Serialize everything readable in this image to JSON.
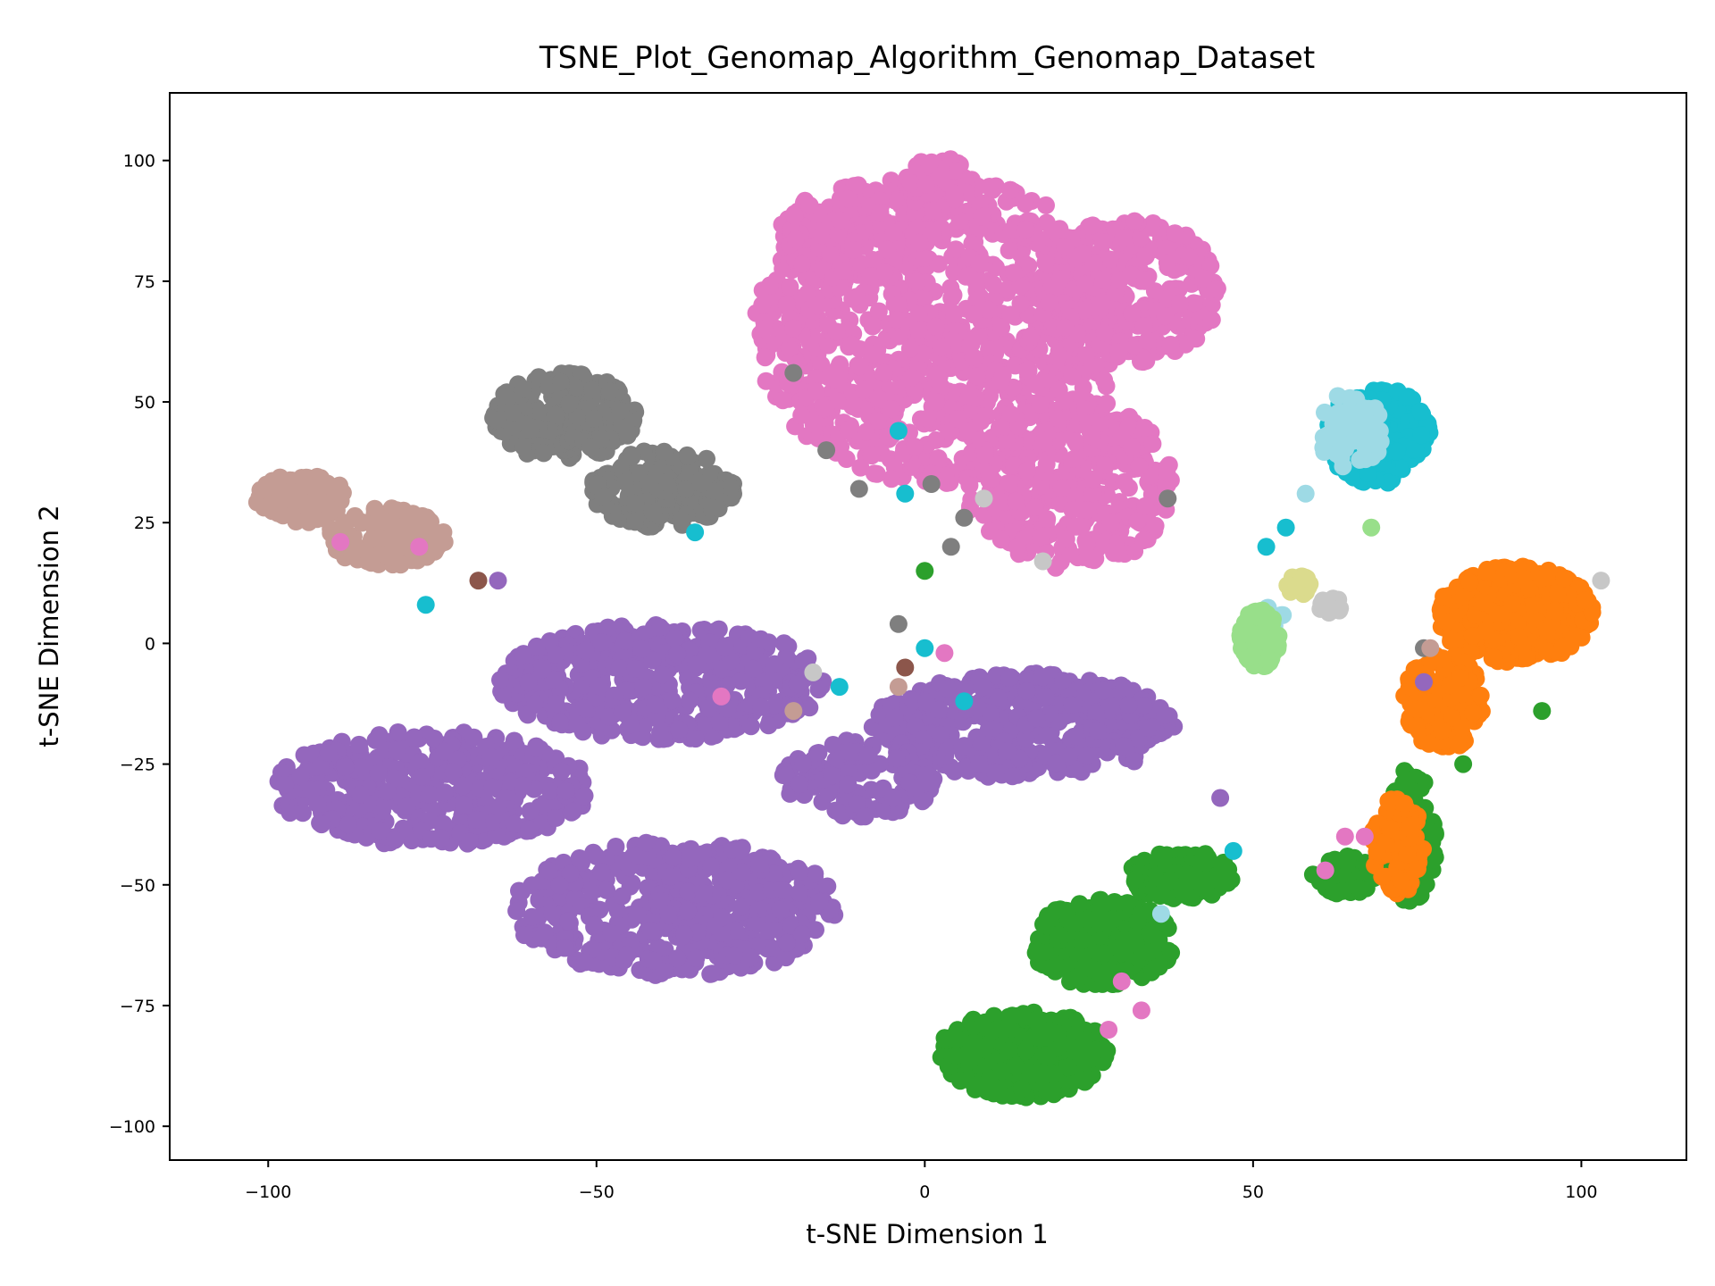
{
  "chart_data": {
    "type": "scatter",
    "title": "TSNE_Plot_Genomap_Algorithm_Genomap_Dataset",
    "xlabel": "t-SNE Dimension 1",
    "ylabel": "t-SNE Dimension 2",
    "xlim": [
      -115,
      116
    ],
    "ylim": [
      -107,
      114
    ],
    "xticks": [
      -100,
      -50,
      0,
      50,
      100
    ],
    "yticks": [
      -100,
      -75,
      -50,
      -25,
      0,
      25,
      50,
      75,
      100
    ],
    "xtick_labels": [
      "−100",
      "−50",
      "0",
      "50",
      "100"
    ],
    "ytick_labels": [
      "−100",
      "−75",
      "−50",
      "−25",
      "0",
      "25",
      "50",
      "75",
      "100"
    ],
    "grid": false,
    "legend": "none",
    "series": [
      {
        "color": "#e377c2",
        "clusters": [
          {
            "cx": 2,
            "cy": 65,
            "rx": 28,
            "ry": 32,
            "n": 900
          },
          {
            "cx": 31,
            "cy": 73,
            "rx": 14,
            "ry": 15,
            "n": 300
          },
          {
            "cx": 22,
            "cy": 33,
            "rx": 16,
            "ry": 18,
            "n": 350
          },
          {
            "cx": -10,
            "cy": 85,
            "rx": 12,
            "ry": 10,
            "n": 150
          },
          {
            "cx": 2,
            "cy": 95,
            "rx": 5,
            "ry": 6,
            "n": 60
          }
        ]
      },
      {
        "color": "#9467bd",
        "clusters": [
          {
            "cx": -40,
            "cy": -8,
            "rx": 25,
            "ry": 12,
            "n": 500
          },
          {
            "cx": 15,
            "cy": -17,
            "rx": 23,
            "ry": 11,
            "n": 450
          },
          {
            "cx": -75,
            "cy": -30,
            "rx": 24,
            "ry": 12,
            "n": 450
          },
          {
            "cx": -38,
            "cy": -55,
            "rx": 25,
            "ry": 14,
            "n": 500
          },
          {
            "cx": -10,
            "cy": -28,
            "rx": 12,
            "ry": 8,
            "n": 120
          }
        ]
      },
      {
        "color": "#7f7f7f",
        "clusters": [
          {
            "cx": -55,
            "cy": 47,
            "rx": 11,
            "ry": 9,
            "n": 260
          },
          {
            "cx": -40,
            "cy": 32,
            "rx": 11,
            "ry": 8,
            "n": 220
          }
        ]
      },
      {
        "color": "#c49c94",
        "clusters": [
          {
            "cx": -95,
            "cy": 30,
            "rx": 7,
            "ry": 5,
            "n": 120
          },
          {
            "cx": -82,
            "cy": 22,
            "rx": 9,
            "ry": 6,
            "n": 140
          }
        ]
      },
      {
        "color": "#2ca02c",
        "clusters": [
          {
            "cx": 15,
            "cy": -85,
            "rx": 13,
            "ry": 9,
            "n": 380
          },
          {
            "cx": 27,
            "cy": -62,
            "rx": 11,
            "ry": 9,
            "n": 300
          },
          {
            "cx": 39,
            "cy": -48,
            "rx": 8,
            "ry": 5,
            "n": 200
          },
          {
            "cx": 74,
            "cy": -40,
            "rx": 4,
            "ry": 14,
            "n": 120
          },
          {
            "cx": 64,
            "cy": -48,
            "rx": 5,
            "ry": 4,
            "n": 60
          }
        ]
      },
      {
        "color": "#ff7f0e",
        "clusters": [
          {
            "cx": 90,
            "cy": 6,
            "rx": 12,
            "ry": 10,
            "n": 420
          },
          {
            "cx": 79,
            "cy": -12,
            "rx": 6,
            "ry": 10,
            "n": 200
          },
          {
            "cx": 72,
            "cy": -42,
            "rx": 4,
            "ry": 10,
            "n": 100
          }
        ]
      },
      {
        "color": "#17becf",
        "clusters": [
          {
            "cx": 69,
            "cy": 43,
            "rx": 8,
            "ry": 10,
            "n": 260
          }
        ]
      },
      {
        "color": "#9edae5",
        "clusters": [
          {
            "cx": 65,
            "cy": 44,
            "rx": 5,
            "ry": 8,
            "n": 80
          },
          {
            "cx": 53,
            "cy": 5,
            "rx": 2,
            "ry": 3,
            "n": 12
          }
        ]
      },
      {
        "color": "#98df8a",
        "clusters": [
          {
            "cx": 51,
            "cy": 1,
            "rx": 3,
            "ry": 6,
            "n": 130
          }
        ]
      },
      {
        "color": "#dbdb8d",
        "clusters": [
          {
            "cx": 57,
            "cy": 12,
            "rx": 2,
            "ry": 2,
            "n": 25
          }
        ]
      },
      {
        "color": "#c7c7c7",
        "clusters": [
          {
            "cx": 62,
            "cy": 8,
            "rx": 2,
            "ry": 2,
            "n": 15
          }
        ]
      }
    ],
    "scattered_points": [
      {
        "color": "#7f7f7f",
        "x": -20,
        "y": 56
      },
      {
        "color": "#7f7f7f",
        "x": -15,
        "y": 40
      },
      {
        "color": "#7f7f7f",
        "x": -10,
        "y": 32
      },
      {
        "color": "#7f7f7f",
        "x": 1,
        "y": 33
      },
      {
        "color": "#7f7f7f",
        "x": 4,
        "y": 20
      },
      {
        "color": "#7f7f7f",
        "x": 6,
        "y": 26
      },
      {
        "color": "#7f7f7f",
        "x": 37,
        "y": 30
      },
      {
        "color": "#7f7f7f",
        "x": -4,
        "y": 4
      },
      {
        "color": "#7f7f7f",
        "x": 76,
        "y": -1
      },
      {
        "color": "#17becf",
        "x": -4,
        "y": 44
      },
      {
        "color": "#17becf",
        "x": -3,
        "y": 31
      },
      {
        "color": "#17becf",
        "x": -35,
        "y": 23
      },
      {
        "color": "#17becf",
        "x": -76,
        "y": 8
      },
      {
        "color": "#17becf",
        "x": -13,
        "y": -9
      },
      {
        "color": "#17becf",
        "x": 6,
        "y": -12
      },
      {
        "color": "#17becf",
        "x": 0,
        "y": -1
      },
      {
        "color": "#17becf",
        "x": 47,
        "y": -43
      },
      {
        "color": "#17becf",
        "x": 55,
        "y": 24
      },
      {
        "color": "#17becf",
        "x": 52,
        "y": 20
      },
      {
        "color": "#9467bd",
        "x": -65,
        "y": 13
      },
      {
        "color": "#9467bd",
        "x": 76,
        "y": -8
      },
      {
        "color": "#9467bd",
        "x": 45,
        "y": -32
      },
      {
        "color": "#e377c2",
        "x": -31,
        "y": -11
      },
      {
        "color": "#e377c2",
        "x": 3,
        "y": -2
      },
      {
        "color": "#e377c2",
        "x": 30,
        "y": -70
      },
      {
        "color": "#e377c2",
        "x": 33,
        "y": -76
      },
      {
        "color": "#e377c2",
        "x": 28,
        "y": -80
      },
      {
        "color": "#e377c2",
        "x": 61,
        "y": -47
      },
      {
        "color": "#e377c2",
        "x": 64,
        "y": -40
      },
      {
        "color": "#e377c2",
        "x": 67,
        "y": -40
      },
      {
        "color": "#e377c2",
        "x": -89,
        "y": 21
      },
      {
        "color": "#e377c2",
        "x": -77,
        "y": 20
      },
      {
        "color": "#8c564b",
        "x": -68,
        "y": 13
      },
      {
        "color": "#8c564b",
        "x": -3,
        "y": -5
      },
      {
        "color": "#c49c94",
        "x": -20,
        "y": -14
      },
      {
        "color": "#c49c94",
        "x": -4,
        "y": -9
      },
      {
        "color": "#c49c94",
        "x": 77,
        "y": -1
      },
      {
        "color": "#c7c7c7",
        "x": -17,
        "y": -6
      },
      {
        "color": "#c7c7c7",
        "x": 9,
        "y": 30
      },
      {
        "color": "#c7c7c7",
        "x": 18,
        "y": 17
      },
      {
        "color": "#c7c7c7",
        "x": 103,
        "y": 13
      },
      {
        "color": "#9edae5",
        "x": 36,
        "y": -56
      },
      {
        "color": "#9edae5",
        "x": 58,
        "y": 31
      },
      {
        "color": "#2ca02c",
        "x": 0,
        "y": 15
      },
      {
        "color": "#2ca02c",
        "x": 94,
        "y": -14
      },
      {
        "color": "#2ca02c",
        "x": 82,
        "y": -25
      },
      {
        "color": "#98df8a",
        "x": 68,
        "y": 24
      }
    ]
  }
}
